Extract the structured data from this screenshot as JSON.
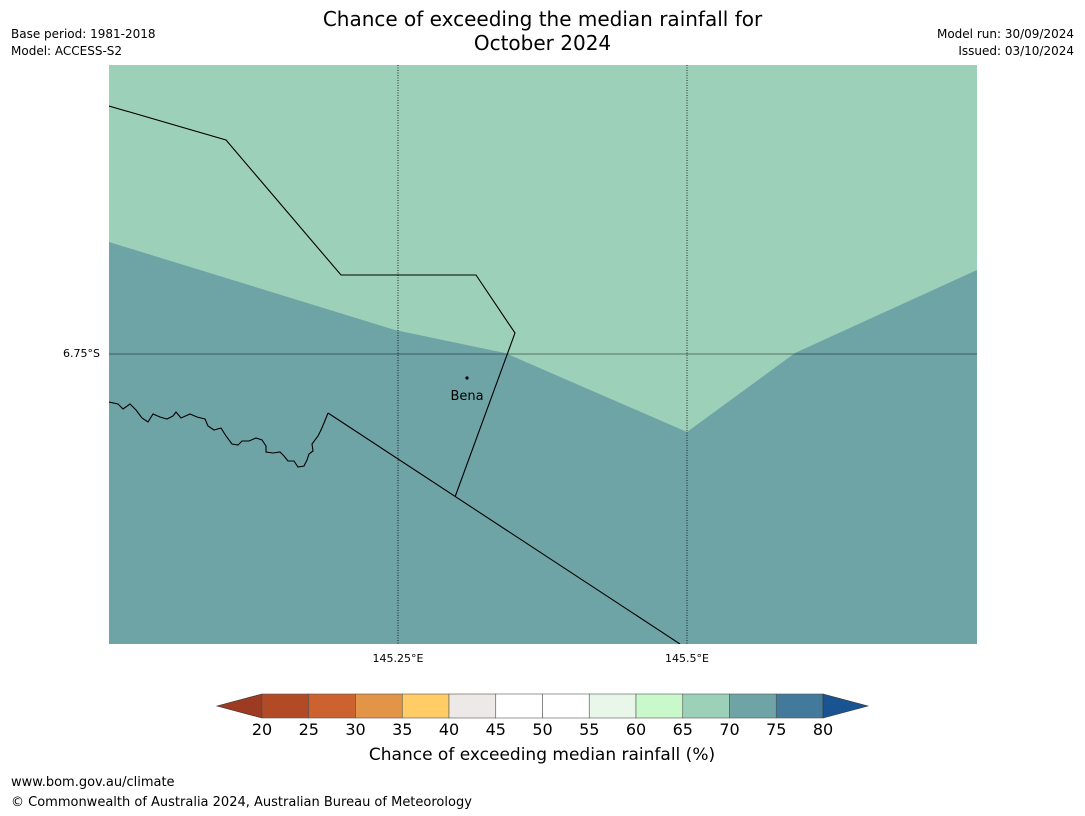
{
  "header": {
    "title_line1": "Chance of exceeding the median rainfall for",
    "title_line2": "October 2024",
    "base_period": "Base period: 1981-2018",
    "model": "Model: ACCESS-S2",
    "model_run": "Model run: 30/09/2024",
    "issued": "Issued: 03/10/2024"
  },
  "map": {
    "lat_label": "6.75°S",
    "lon_labels": [
      "145.25°E",
      "145.5°E"
    ],
    "place": "Bena",
    "colors": {
      "band_60_65": "#c9f9cb",
      "band_65_70": "#9dd0b9",
      "band_70_75": "#6fa4a7",
      "border": "#000000",
      "gridline": "#000000"
    }
  },
  "colorbar": {
    "ticks": [
      "20",
      "25",
      "30",
      "35",
      "40",
      "45",
      "50",
      "55",
      "60",
      "65",
      "70",
      "75",
      "80"
    ],
    "colors": [
      "#b24a25",
      "#cc6230",
      "#e29447",
      "#ffcc66",
      "#ede9e6",
      "#ffffff",
      "#ffffff",
      "#e8f7ea",
      "#c9f9cb",
      "#9dd0b9",
      "#6fa4a7",
      "#437a9b"
    ],
    "low_extend_color": "#9c3a22",
    "high_extend_color": "#1a5391",
    "label": "Chance of exceeding median rainfall (%)"
  },
  "footer": {
    "url": "www.bom.gov.au/climate",
    "copyright": "© Commonwealth of Australia 2024, Australian Bureau of Meteorology"
  }
}
